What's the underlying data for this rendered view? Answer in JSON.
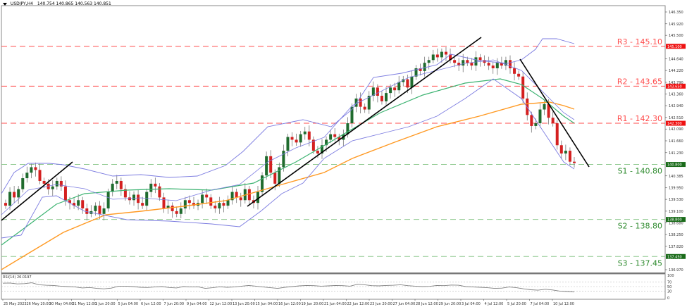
{
  "header": {
    "symbol_label": "USDJPY,H4",
    "ohlc": "140.754 140.865 140.563 140.851"
  },
  "colors": {
    "background": "#ffffff",
    "resistance": "#ff4d4d",
    "support": "#2e8b2e",
    "support_line": "#8fc98f",
    "bull_candle": "#1f6b2e",
    "bear_candle": "#d42020",
    "bollinger": "#7b7be0",
    "ma_green": "#3cb371",
    "ma_orange": "#ff9922",
    "trendline": "#000000",
    "rsi_line": "#808080"
  },
  "levels": [
    {
      "name": "R3",
      "label": "R3 - 145.10",
      "value": 145.1,
      "type": "resistance",
      "axis_tag": "145.100"
    },
    {
      "name": "R2",
      "label": "R2 - 143.65",
      "value": 143.65,
      "type": "resistance",
      "axis_tag": "143.650"
    },
    {
      "name": "R1",
      "label": "R1 - 142.30",
      "value": 142.3,
      "type": "resistance",
      "axis_tag": "142.300"
    },
    {
      "name": "S1",
      "label": "S1 - 140.80",
      "value": 140.8,
      "type": "support",
      "axis_tag": "140.800"
    },
    {
      "name": "S2",
      "label": "S2 - 138.80",
      "value": 138.8,
      "type": "support",
      "axis_tag": "138.800"
    },
    {
      "name": "S3",
      "label": "S3 - 137.45",
      "value": 137.45,
      "type": "support",
      "axis_tag": "137.450"
    }
  ],
  "y_axis": {
    "ticks": [
      "146.350",
      "145.920",
      "145.500",
      "144.640",
      "144.220",
      "143.790",
      "143.360",
      "142.940",
      "142.510",
      "142.090",
      "141.660",
      "141.230",
      "140.385",
      "139.950",
      "139.530",
      "139.100",
      "138.680",
      "138.250",
      "137.820",
      "136.970"
    ]
  },
  "x_axis": {
    "ticks": [
      "25 May 2023",
      "26 May 20:00",
      "30 May 04:00",
      "31 May 12:00",
      "1 Jun 20:00",
      "5 Jun 04:00",
      "6 Jun 12:00",
      "7 Jun 20:00",
      "9 Jun 04:00",
      "12 Jun 12:00",
      "13 Jun 20:00",
      "15 Jun 04:00",
      "16 Jun 12:00",
      "19 Jun 20:00",
      "21 Jun 04:00",
      "22 Jun 12:00",
      "23 Jun 20:00",
      "27 Jun 04:00",
      "28 Jun 12:00",
      "29 Jun 20:00",
      "3 Jul 04:00",
      "4 Jul 12:00",
      "5 Jul 20:00",
      "7 Jul 04:00",
      "10 Jul 12:00"
    ]
  },
  "rsi": {
    "label": "RSI(14) 26.0197",
    "ticks": [
      "100",
      "70",
      "50",
      "30",
      "0"
    ]
  },
  "chart_data": {
    "type": "candlestick",
    "title": "USDJPY,H4",
    "subtitle": "140.754 140.865 140.563 140.851",
    "xlabel": "",
    "ylabel": "",
    "ylim": [
      136.97,
      146.35
    ],
    "grid": false,
    "annotations": [
      "R3 - 145.10",
      "R2 - 143.65",
      "R1 - 142.30",
      "S1 - 140.80",
      "S2 - 138.80",
      "S3 - 137.45"
    ],
    "x_ticks": [
      "25 May 2023",
      "26 May 20:00",
      "30 May 04:00",
      "31 May 12:00",
      "1 Jun 20:00",
      "5 Jun 04:00",
      "6 Jun 12:00",
      "7 Jun 20:00",
      "9 Jun 04:00",
      "12 Jun 12:00",
      "13 Jun 20:00",
      "15 Jun 04:00",
      "16 Jun 12:00",
      "19 Jun 20:00",
      "21 Jun 04:00",
      "22 Jun 12:00",
      "23 Jun 20:00",
      "27 Jun 04:00",
      "28 Jun 12:00",
      "29 Jun 20:00",
      "3 Jul 04:00",
      "4 Jul 12:00",
      "5 Jul 20:00",
      "7 Jul 04:00",
      "10 Jul 12:00"
    ],
    "approx_close_path": [
      {
        "x": "25 May 2023",
        "close": 139.8
      },
      {
        "x": "26 May 20:00",
        "close": 140.5
      },
      {
        "x": "30 May 04:00",
        "close": 140.1
      },
      {
        "x": "31 May 12:00",
        "close": 139.3
      },
      {
        "x": "1 Jun 20:00",
        "close": 139.0
      },
      {
        "x": "5 Jun 04:00",
        "close": 139.8
      },
      {
        "x": "6 Jun 12:00",
        "close": 139.6
      },
      {
        "x": "7 Jun 20:00",
        "close": 139.3
      },
      {
        "x": "9 Jun 04:00",
        "close": 139.3
      },
      {
        "x": "12 Jun 12:00",
        "close": 139.4
      },
      {
        "x": "13 Jun 20:00",
        "close": 139.6
      },
      {
        "x": "15 Jun 04:00",
        "close": 140.4
      },
      {
        "x": "16 Jun 12:00",
        "close": 141.8
      },
      {
        "x": "19 Jun 20:00",
        "close": 141.8
      },
      {
        "x": "21 Jun 04:00",
        "close": 141.5
      },
      {
        "x": "22 Jun 12:00",
        "close": 142.7
      },
      {
        "x": "23 Jun 20:00",
        "close": 143.5
      },
      {
        "x": "27 Jun 04:00",
        "close": 143.8
      },
      {
        "x": "28 Jun 12:00",
        "close": 144.4
      },
      {
        "x": "29 Jun 20:00",
        "close": 144.8
      },
      {
        "x": "3 Jul 04:00",
        "close": 144.5
      },
      {
        "x": "4 Jul 12:00",
        "close": 144.5
      },
      {
        "x": "5 Jul 20:00",
        "close": 144.0
      },
      {
        "x": "7 Jul 04:00",
        "close": 142.2
      },
      {
        "x": "10 Jul 12:00",
        "close": 140.85
      }
    ],
    "series": [
      {
        "name": "Bollinger Bands",
        "color": "#7b7be0"
      },
      {
        "name": "Moving Average (green)",
        "color": "#3cb371"
      },
      {
        "name": "Moving Average (orange)",
        "color": "#ff9922"
      },
      {
        "name": "Trendlines",
        "color": "#000000"
      }
    ],
    "indicator": {
      "name": "RSI(14)",
      "last_value": 26.0197,
      "levels": [
        100,
        70,
        50,
        30,
        0
      ]
    },
    "last_price": 140.851
  }
}
